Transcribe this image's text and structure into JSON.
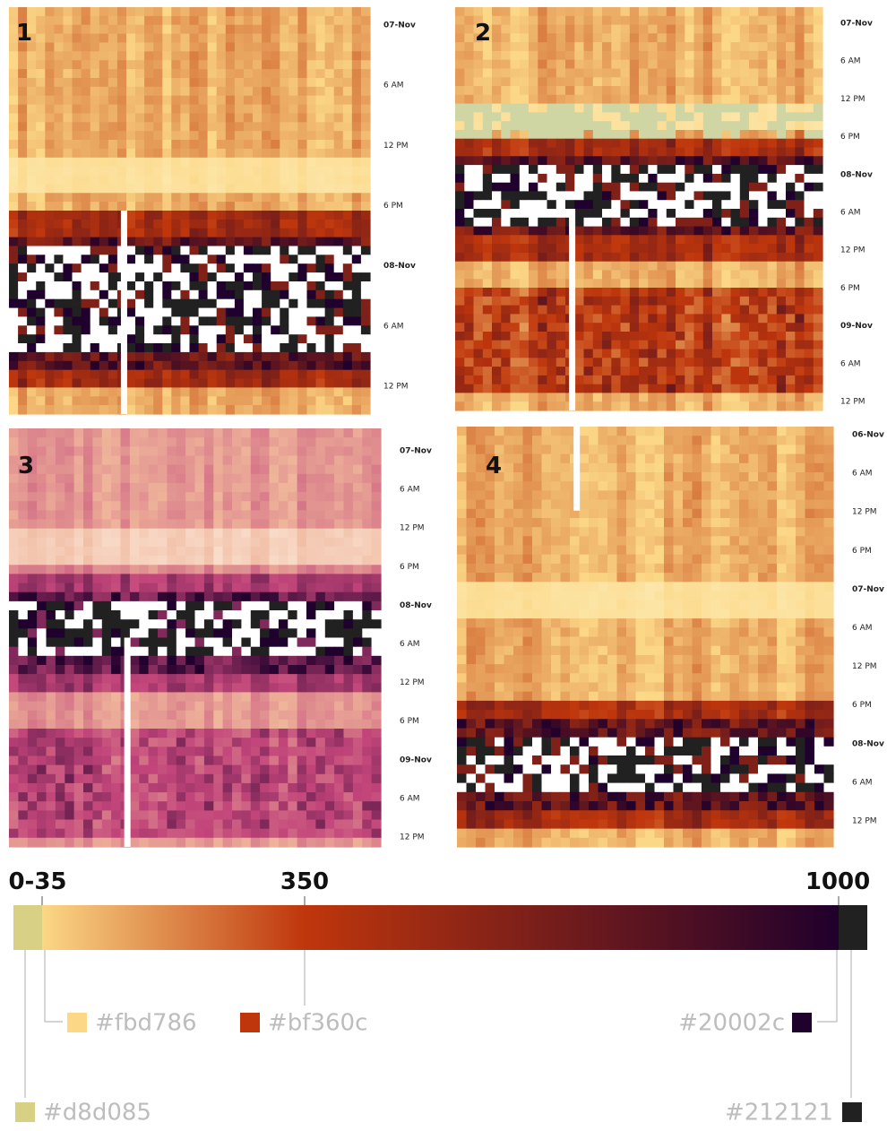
{
  "panels": [
    {
      "label": "1",
      "ticks": [
        "07-Nov",
        "6 AM",
        "12 PM",
        "6 PM",
        "08-Nov",
        "6 AM",
        "12 PM"
      ]
    },
    {
      "label": "2",
      "ticks": [
        "07-Nov",
        "6 AM",
        "12 PM",
        "6 PM",
        "08-Nov",
        "6 AM",
        "12 PM",
        "6 PM",
        "09-Nov",
        "6 AM",
        "12 PM"
      ]
    },
    {
      "label": "3",
      "ticks": [
        "07-Nov",
        "6 AM",
        "12 PM",
        "6 PM",
        "08-Nov",
        "6 AM",
        "12 PM",
        "6 PM",
        "09-Nov",
        "6 AM",
        "12 PM"
      ]
    },
    {
      "label": "4",
      "ticks": [
        "06-Nov",
        "6 AM",
        "12 PM",
        "6 PM",
        "07-Nov",
        "6 AM",
        "12 PM",
        "6 PM",
        "08-Nov",
        "6 AM",
        "12 PM"
      ]
    }
  ],
  "scale": {
    "stops": [
      "0-35",
      "350",
      "1000"
    ],
    "swatches": [
      "#fbd786",
      "#bf360c",
      "#20002c",
      "#d8d085",
      "#212121"
    ]
  }
}
